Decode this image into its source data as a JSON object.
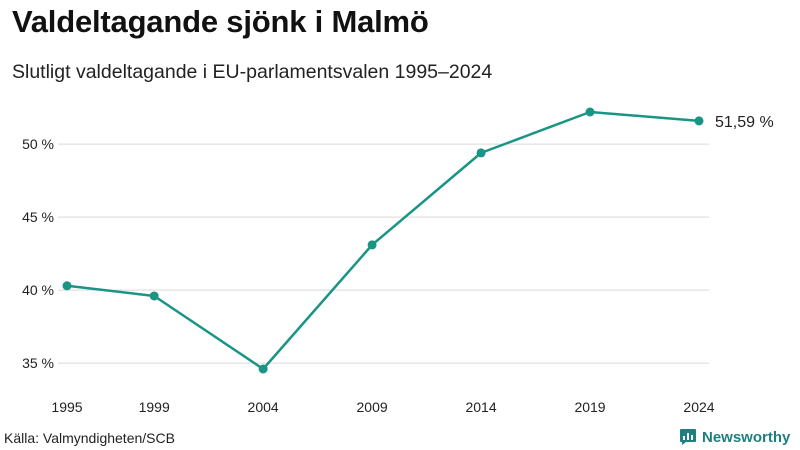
{
  "title": "Valdeltagande sjönk i Malmö",
  "subtitle": "Slutligt valdeltagande i EU-parlamentsvalen 1995–2024",
  "source": "Källa: Valmyndigheten/SCB",
  "brand": {
    "name": "Newsworthy",
    "icon": "bar-chart-speech-bubble-icon"
  },
  "colors": {
    "line": "#1a9485",
    "grid": "#d9d9d9",
    "brand": "#1f7f80"
  },
  "chart_data": {
    "type": "line",
    "title": "Valdeltagande sjönk i Malmö",
    "subtitle": "Slutligt valdeltagande i EU-parlamentsvalen 1995–2024",
    "xlabel": "",
    "ylabel": "",
    "x": [
      1995,
      1999,
      2004,
      2009,
      2014,
      2019,
      2024
    ],
    "x_tick_labels": [
      "1995",
      "1999",
      "2004",
      "2009",
      "2014",
      "2019",
      "2024"
    ],
    "series": [
      {
        "name": "Valdeltagande",
        "values": [
          40.3,
          39.6,
          34.6,
          43.1,
          49.4,
          52.2,
          51.59
        ]
      }
    ],
    "y_ticks": [
      35,
      40,
      45,
      50
    ],
    "y_tick_labels": [
      "35 %",
      "40 %",
      "45 %",
      "50 %"
    ],
    "xlim": [
      1995,
      2024
    ],
    "ylim": [
      34.6,
      52.2
    ],
    "grid": true,
    "end_label": "51,59 %"
  }
}
